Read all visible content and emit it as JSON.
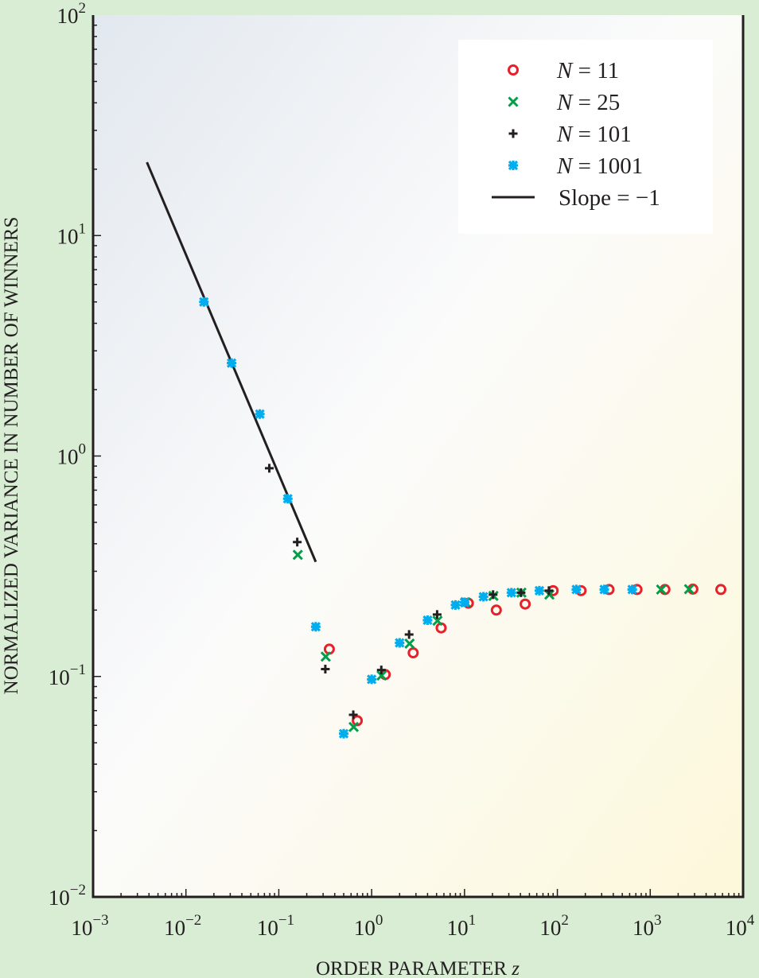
{
  "chart_data": {
    "type": "scatter",
    "title": "",
    "xlabel": "ORDER PARAMETER",
    "xlabel_var": "z",
    "ylabel": "NORMALIZED VARIANCE IN NUMBER OF WINNERS",
    "xscale": "log",
    "yscale": "log",
    "xlim": [
      0.001,
      10000
    ],
    "ylim": [
      0.01,
      100
    ],
    "grid": false,
    "legend_position": "top-right",
    "x_tick_labels": [
      {
        "base": "10",
        "exp": "−3",
        "value": 0.001
      },
      {
        "base": "10",
        "exp": "−2",
        "value": 0.01
      },
      {
        "base": "10",
        "exp": "−1",
        "value": 0.1
      },
      {
        "base": "10",
        "exp": "0",
        "value": 1
      },
      {
        "base": "10",
        "exp": "1",
        "value": 10
      },
      {
        "base": "10",
        "exp": "2",
        "value": 100
      },
      {
        "base": "10",
        "exp": "3",
        "value": 1000
      },
      {
        "base": "10",
        "exp": "4",
        "value": 10000
      }
    ],
    "y_tick_labels": [
      {
        "base": "10",
        "exp": "−2",
        "value": 0.01
      },
      {
        "base": "10",
        "exp": "−1",
        "value": 0.1
      },
      {
        "base": "10",
        "exp": "0",
        "value": 1
      },
      {
        "base": "10",
        "exp": "1",
        "value": 10
      },
      {
        "base": "10",
        "exp": "2",
        "value": 100
      }
    ],
    "series": [
      {
        "name_var": "N",
        "name_eq": " = ",
        "name_val": "11",
        "marker": "circle",
        "color": "#e8202a",
        "x": [
          0.35,
          0.7,
          1.4,
          2.8,
          5.6,
          11,
          22,
          45,
          90,
          180,
          360,
          720,
          1440,
          2880,
          5760
        ],
        "y": [
          0.133,
          0.063,
          0.102,
          0.128,
          0.166,
          0.215,
          0.2,
          0.213,
          0.245,
          0.245,
          0.248,
          0.248,
          0.248,
          0.249,
          0.248
        ]
      },
      {
        "name_var": "N",
        "name_eq": " = ",
        "name_val": "25",
        "marker": "x",
        "color": "#00a04a",
        "x": [
          0.16,
          0.32,
          0.64,
          1.28,
          2.56,
          5.12,
          10.24,
          20.5,
          41,
          82,
          1311,
          2621
        ],
        "y": [
          0.356,
          0.123,
          0.059,
          0.101,
          0.141,
          0.179,
          0.217,
          0.232,
          0.24,
          0.235,
          0.248,
          0.249
        ]
      },
      {
        "name_var": "N",
        "name_eq": " = ",
        "name_val": "101",
        "marker": "plus",
        "color": "#231f20",
        "x": [
          0.079,
          0.158,
          0.317,
          0.634,
          1.27,
          2.53,
          5.07,
          20.3,
          40.6,
          81
        ],
        "y": [
          0.88,
          0.407,
          0.108,
          0.067,
          0.107,
          0.155,
          0.191,
          0.235,
          0.24,
          0.245
        ]
      },
      {
        "name_var": "N",
        "name_eq": " = ",
        "name_val": "1001",
        "marker": "asterisk",
        "color": "#00aeef",
        "x": [
          0.0156,
          0.031,
          0.0625,
          0.125,
          0.25,
          0.5,
          1,
          2,
          4,
          8,
          10,
          16,
          32,
          64,
          160,
          320,
          640
        ],
        "y": [
          5.0,
          2.64,
          1.55,
          0.64,
          0.168,
          0.055,
          0.097,
          0.142,
          0.18,
          0.211,
          0.217,
          0.23,
          0.24,
          0.245,
          0.248,
          0.248,
          0.248
        ]
      }
    ],
    "reference_line": {
      "label": "Slope = −1",
      "color": "#231f20",
      "x": [
        0.0038,
        0.25
      ],
      "y": [
        21.5,
        0.331
      ]
    }
  }
}
